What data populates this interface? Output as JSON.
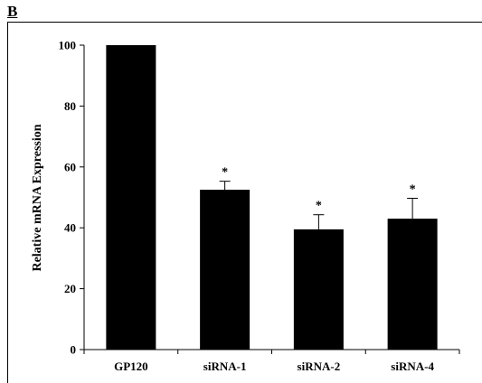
{
  "panel_label": "B",
  "chart_data": {
    "type": "bar",
    "categories": [
      "GP120",
      "siRNA-1",
      "siRNA-2",
      "siRNA-4"
    ],
    "values": [
      100,
      52.5,
      39.5,
      43
    ],
    "error": [
      0,
      2.8,
      4.8,
      6.7
    ],
    "significance": [
      "",
      "*",
      "*",
      "*"
    ],
    "title": "",
    "xlabel": "",
    "ylabel": "Relative mRNA Expression",
    "ylim": [
      0,
      100
    ],
    "yticks": [
      0,
      20,
      40,
      60,
      80,
      100
    ],
    "grid": false,
    "bar_color": "#000000"
  }
}
